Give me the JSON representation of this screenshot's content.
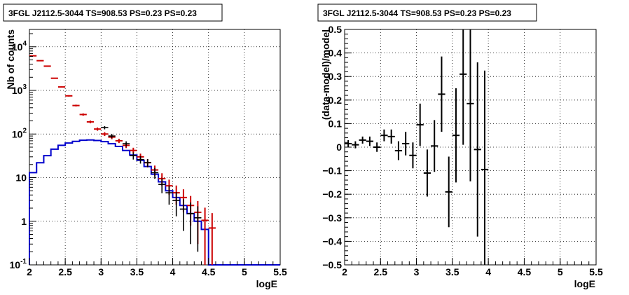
{
  "chart_data": [
    {
      "type": "line",
      "title": "3FGL J2112.5-3044 TS=908.53 PS=0.23 PS=0.23",
      "xlabel": "logE",
      "ylabel": "Nb of counts",
      "xlim": [
        2,
        5.5
      ],
      "ylim": [
        0.1,
        25000
      ],
      "yscale": "log",
      "grid": true,
      "xticks": [
        "2",
        "2.5",
        "3",
        "3.5",
        "4",
        "4.5",
        "5",
        "5.5"
      ],
      "yticks": [
        {
          "base": "10",
          "exp": "-1",
          "value": 0.1
        },
        {
          "base": "1",
          "exp": "",
          "value": 1
        },
        {
          "base": "10",
          "exp": "",
          "value": 10
        },
        {
          "base": "10",
          "exp": "2",
          "value": 100
        },
        {
          "base": "10",
          "exp": "3",
          "value": 1000
        },
        {
          "base": "10",
          "exp": "4",
          "value": 10000
        }
      ],
      "bin_edges": [
        2.0,
        2.1,
        2.2,
        2.3,
        2.4,
        2.5,
        2.6,
        2.7,
        2.8,
        2.9,
        3.0,
        3.1,
        3.2,
        3.3,
        3.4,
        3.5,
        3.6,
        3.7,
        3.8,
        3.9,
        4.0,
        4.1,
        4.2,
        4.3,
        4.4,
        4.5,
        4.6,
        4.7,
        4.8,
        4.9,
        5.0,
        5.1,
        5.2,
        5.3,
        5.4,
        5.5
      ],
      "series": [
        {
          "color": "#0000cc",
          "style": "step",
          "values": [
            13,
            22,
            32,
            45,
            55,
            62,
            68,
            72,
            73,
            71,
            67,
            60,
            52,
            42,
            33,
            25,
            18,
            12,
            8,
            5,
            3.5,
            2.3,
            1.5,
            1.0,
            0.65,
            0.1,
            0.1,
            0.1,
            0.1,
            0.1,
            0.1,
            0.1,
            0.1,
            0.1,
            0.1
          ]
        },
        {
          "color": "#cc0000",
          "style": "errorbar",
          "x": [
            2.05,
            2.15,
            2.25,
            2.35,
            2.45,
            2.55,
            2.65,
            2.75,
            2.85,
            2.95,
            3.05,
            3.15,
            3.25,
            3.35,
            3.45,
            3.55,
            3.65,
            3.75,
            3.85,
            3.95,
            4.05,
            4.15,
            4.25,
            4.35,
            4.45,
            4.55
          ],
          "y": [
            6200,
            4800,
            3600,
            1900,
            1200,
            750,
            450,
            280,
            190,
            130,
            100,
            85,
            70,
            55,
            42,
            30,
            22,
            15,
            9.5,
            6.5,
            4.5,
            3.5,
            2.3,
            1.6,
            1.05,
            0.7
          ],
          "yerr": [
            80,
            70,
            60,
            45,
            35,
            27,
            21,
            17,
            14,
            11,
            10,
            9,
            8,
            7.4,
            6.5,
            5.5,
            4.7,
            3.9,
            3.1,
            2.5,
            2.1,
            1.9,
            1.5,
            1.3,
            1.0,
            0.84
          ]
        },
        {
          "color": "#000000",
          "style": "errorbar",
          "x": [
            3.05,
            3.15,
            3.35,
            3.45,
            3.55,
            3.65,
            3.75,
            3.85,
            3.95,
            4.05,
            4.15,
            4.25,
            4.35
          ],
          "y": [
            140,
            90,
            60,
            32,
            26,
            22,
            13,
            7.0,
            4.5,
            3.0,
            1.9,
            1.5,
            1.2
          ],
          "yerr": [
            12,
            10,
            8,
            6,
            5,
            4.7,
            3.6,
            2.6,
            2.1,
            1.7,
            1.3,
            1.2,
            1.0
          ]
        }
      ]
    },
    {
      "type": "scatter",
      "title": "3FGL J2112.5-3044 TS=908.53 PS=0.23 PS=0.23",
      "xlabel": "logE",
      "ylabel": "(data-model)/model",
      "xlim": [
        2,
        5.5
      ],
      "ylim": [
        -0.5,
        0.5
      ],
      "grid": true,
      "xticks": [
        "2",
        "2.5",
        "3",
        "3.5",
        "4",
        "4.5",
        "5",
        "5.5"
      ],
      "yticks": [
        "−0.5",
        "−0.4",
        "−0.3",
        "−0.2",
        "−0.1",
        "0",
        "0.1",
        "0.2",
        "0.3",
        "0.4",
        "0.5"
      ],
      "ytick_values": [
        -0.5,
        -0.4,
        -0.3,
        -0.2,
        -0.1,
        0,
        0.1,
        0.2,
        0.3,
        0.4,
        0.5
      ],
      "series": [
        {
          "color": "#000000",
          "style": "errorbar",
          "x": [
            2.05,
            2.15,
            2.25,
            2.35,
            2.45,
            2.55,
            2.65,
            2.75,
            2.85,
            2.95,
            3.05,
            3.15,
            3.25,
            3.35,
            3.45,
            3.55,
            3.65,
            3.75,
            3.85,
            3.95
          ],
          "xerr": 0.05,
          "y": [
            0.015,
            0.01,
            0.03,
            0.025,
            0.0,
            0.05,
            0.045,
            -0.015,
            0.015,
            -0.035,
            0.095,
            -0.11,
            0.005,
            0.225,
            -0.19,
            0.05,
            0.31,
            0.185,
            -0.01,
            -0.095
          ],
          "yerr": [
            0.015,
            0.015,
            0.015,
            0.02,
            0.02,
            0.025,
            0.03,
            0.04,
            0.05,
            0.055,
            0.09,
            0.1,
            0.11,
            0.16,
            0.15,
            0.2,
            0.3,
            0.33,
            0.37,
            0.42
          ]
        }
      ]
    }
  ]
}
